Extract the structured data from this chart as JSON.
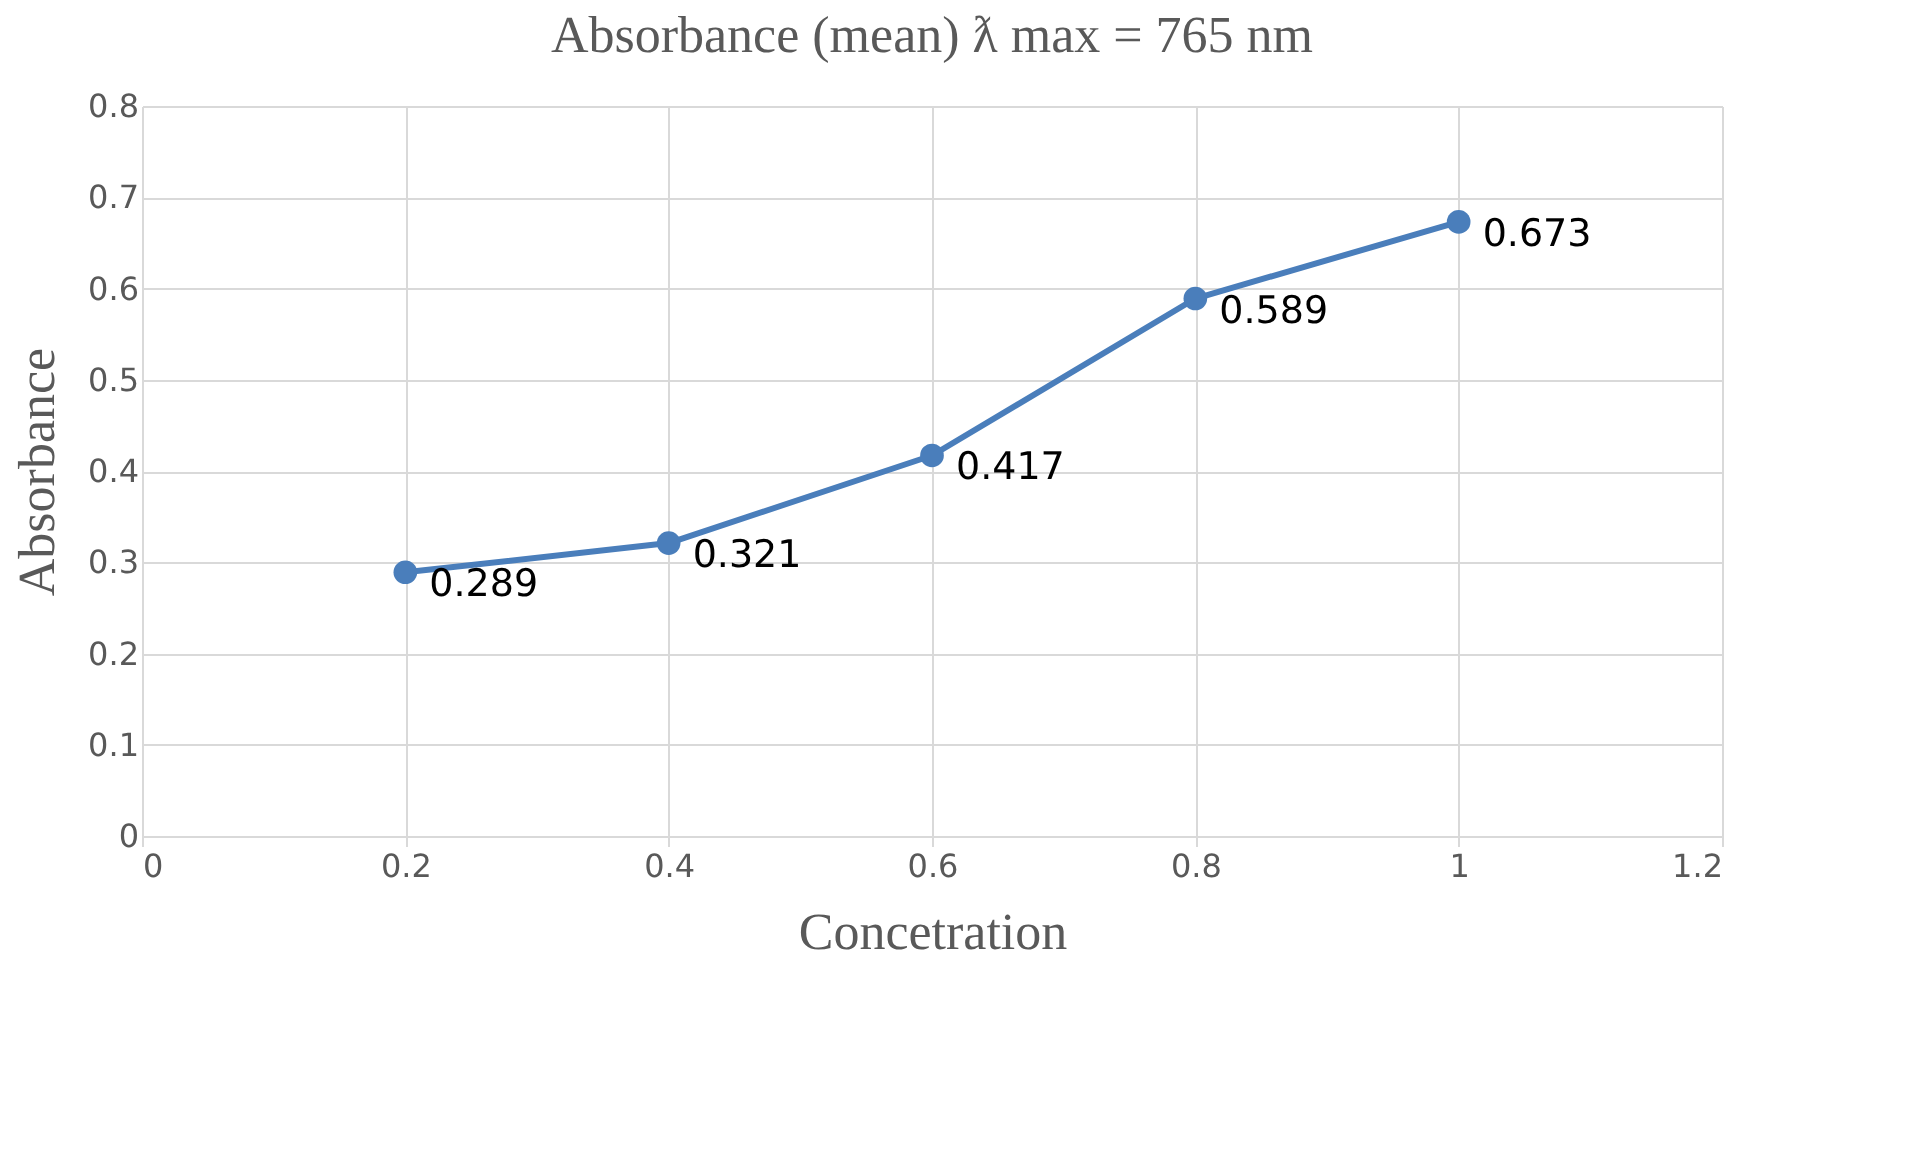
{
  "chart_data": {
    "type": "line",
    "title": "Absorbance (mean) ƛ max = 765 nm",
    "xlabel": "Concetration",
    "ylabel": "Absorbance",
    "x": [
      0.2,
      0.4,
      0.6,
      0.8,
      1
    ],
    "series": [
      {
        "color": "#4a7ebb",
        "values": [
          0.289,
          0.321,
          0.417,
          0.589,
          0.673
        ]
      }
    ],
    "xlim": [
      0,
      1.2
    ],
    "xticks": [
      0,
      0.2,
      0.4,
      0.6,
      0.8,
      1,
      1.2
    ],
    "ylim": [
      0,
      0.8
    ],
    "yticks": [
      0,
      0.1,
      0.2,
      0.3,
      0.4,
      0.5,
      0.6,
      0.7,
      0.8
    ],
    "grid": true,
    "marker": "circle",
    "line_style": "solid",
    "data_labels": true
  }
}
